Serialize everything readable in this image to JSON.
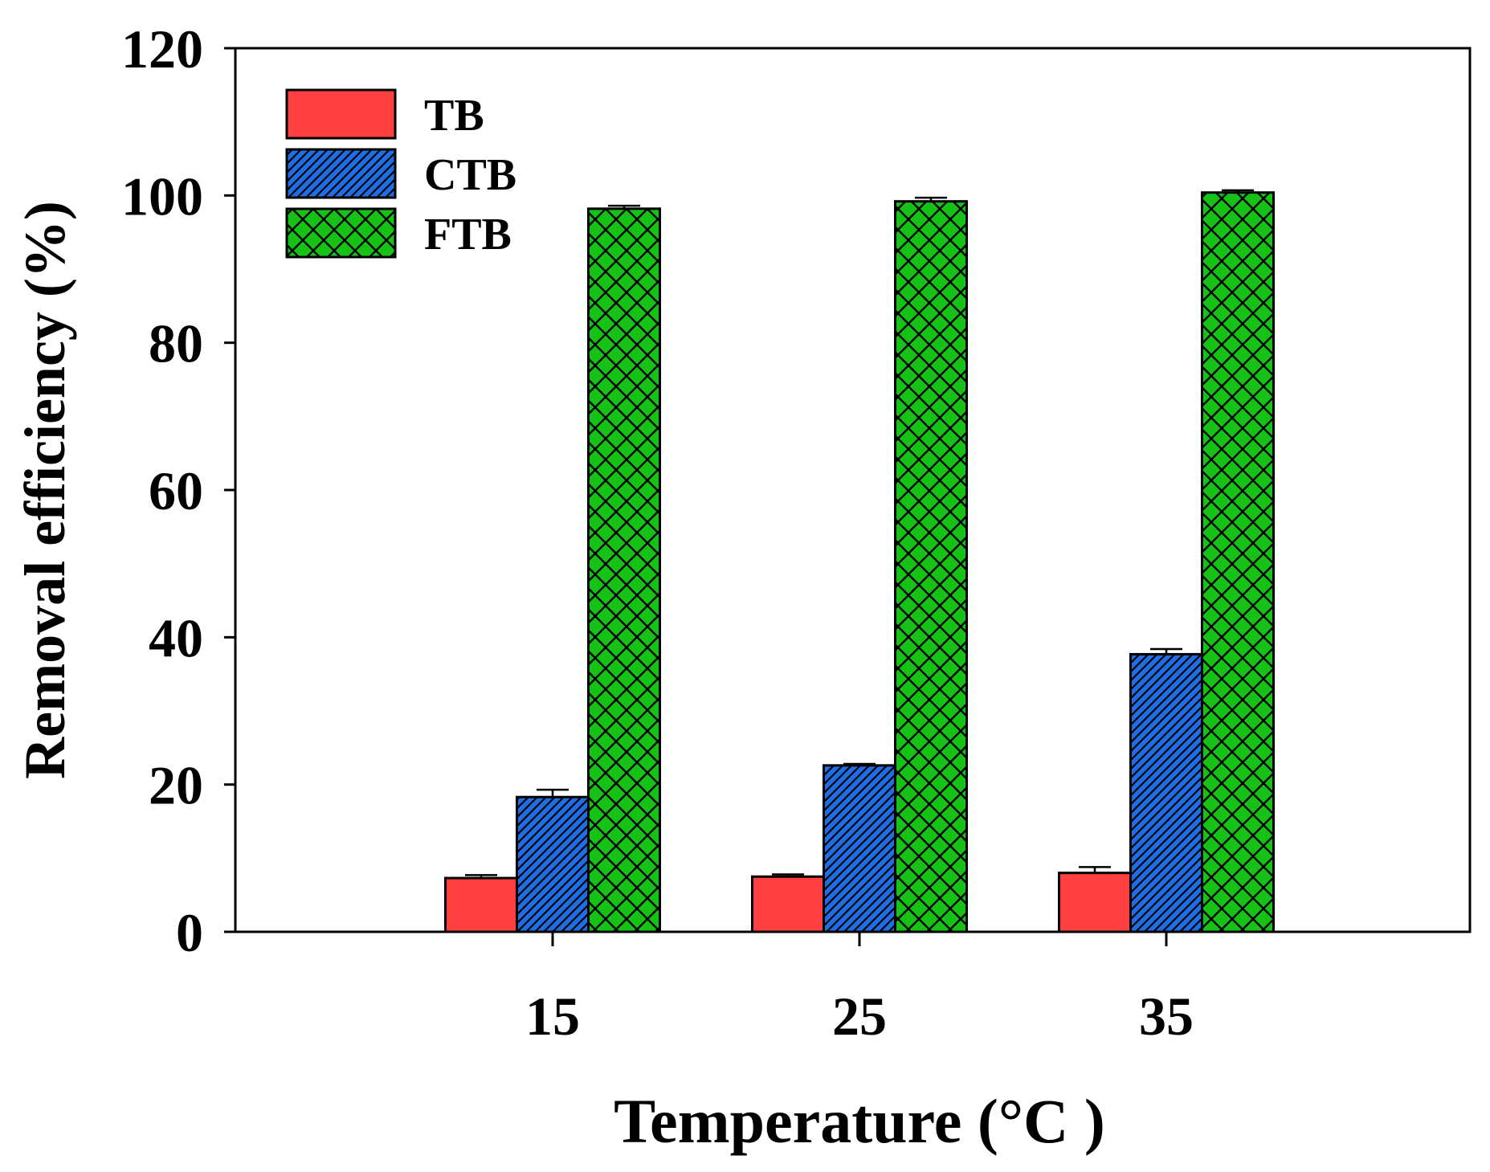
{
  "chart_data": {
    "type": "bar",
    "title": "",
    "xlabel": "Temperature (°C )",
    "ylabel": "Removal efficiency (%)",
    "categories": [
      "15",
      "25",
      "35"
    ],
    "ylim": [
      0,
      120
    ],
    "yticks": [
      "0",
      "20",
      "40",
      "60",
      "80",
      "100",
      "120"
    ],
    "grid": false,
    "legend_position": "top-left",
    "series": [
      {
        "name": "TB",
        "color": "#ff4040",
        "pattern": "solid",
        "values": [
          7.3,
          7.5,
          8.0
        ],
        "errors": [
          0.4,
          0.3,
          0.8
        ]
      },
      {
        "name": "CTB",
        "color": "#1e6fe6",
        "pattern": "diagonal-hatch",
        "values": [
          18.3,
          22.6,
          37.7
        ],
        "errors": [
          1.0,
          0.2,
          0.7
        ]
      },
      {
        "name": "FTB",
        "color": "#17c217",
        "pattern": "crosshatch",
        "values": [
          98.2,
          99.2,
          100.4
        ],
        "errors": [
          0.4,
          0.5,
          0.3
        ]
      }
    ]
  }
}
